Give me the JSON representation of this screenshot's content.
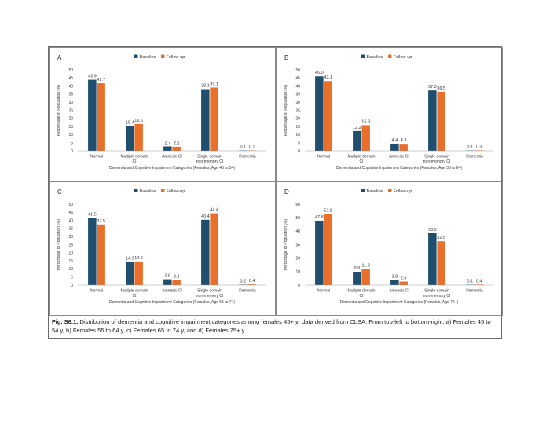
{
  "colors": {
    "baseline": "#1f4e6e",
    "followup": "#e8702a",
    "axis": "#999999"
  },
  "legend": {
    "baseline": "Baseline",
    "followup": "Follow-up"
  },
  "caption": {
    "label": "Fig. S6.1.",
    "text": " Distribution of dementia and cognitive impairment categories among females 45+ y; data derived from CLSA. From top-left to bottom-right: a) Females 45 to 54 y, b) Females 55 to 64 y, c) Females 65 to 74 y, and d) Females 75+ y."
  },
  "chart_data": [
    {
      "type": "bar",
      "panel": "A",
      "categories": [
        [
          "Normal"
        ],
        [
          "Multiple domain",
          "CI"
        ],
        [
          "Amnesic CI"
        ],
        [
          "Single domain",
          "non-memory CI"
        ],
        [
          "Dementia"
        ]
      ],
      "series": [
        {
          "name": "Baseline",
          "values": [
            43.9,
            15.4,
            2.7,
            38.1,
            0.1
          ],
          "labels": [
            "43.9",
            "15.4",
            "2.7",
            "38.1",
            "0.1"
          ]
        },
        {
          "name": "Follow-up",
          "values": [
            41.7,
            16.6,
            2.5,
            39.1,
            0.1
          ],
          "labels": [
            "41.7",
            "16.6",
            "2.5",
            "39.1",
            "0.1"
          ]
        }
      ],
      "ylabel": "Percentage of Population (%)",
      "xlabel": "Dementia and Cognitive Impairment Categories (Females, Age 45 to 54)",
      "ylim": [
        0,
        50
      ],
      "yticks": [
        0,
        5,
        10,
        15,
        20,
        25,
        30,
        35,
        40,
        45,
        50
      ],
      "grid": false,
      "legend_position": "top-center"
    },
    {
      "type": "bar",
      "panel": "B",
      "categories": [
        [
          "Normal"
        ],
        [
          "Multiple domain",
          "CI"
        ],
        [
          "Amnesic CI"
        ],
        [
          "Single domain",
          "non-memory CI"
        ],
        [
          "Dementia"
        ]
      ],
      "series": [
        {
          "name": "Baseline",
          "values": [
            46.0,
            12.2,
            4.4,
            37.3,
            0.1
          ],
          "labels": [
            "46.0",
            "12.2",
            "4.4",
            "37.3",
            "0.1"
          ]
        },
        {
          "name": "Follow-up",
          "values": [
            43.1,
            15.8,
            4.3,
            36.5,
            0.3
          ],
          "labels": [
            "43.1",
            "15.8",
            "4.3",
            "36.5",
            "0.3"
          ]
        }
      ],
      "ylabel": "Percentage of Population (%)",
      "xlabel": "Dementia and Cognitive Impairment Categories (Females, Age 55 to 64)",
      "ylim": [
        0,
        50
      ],
      "yticks": [
        0,
        5,
        10,
        15,
        20,
        25,
        30,
        35,
        40,
        45,
        50
      ],
      "grid": false,
      "legend_position": "top-center"
    },
    {
      "type": "bar",
      "panel": "C",
      "categories": [
        [
          "Normal"
        ],
        [
          "Multiple domain",
          "CI"
        ],
        [
          "Amnesic CI"
        ],
        [
          "Single domain",
          "non-memory CI"
        ],
        [
          "Dementia"
        ]
      ],
      "series": [
        {
          "name": "Baseline",
          "values": [
            41.5,
            14.3,
            3.6,
            40.4,
            0.2
          ],
          "labels": [
            "41.5",
            "14.3",
            "3.6",
            "40.4",
            "0.2"
          ]
        },
        {
          "name": "Follow-up",
          "values": [
            37.5,
            14.6,
            3.2,
            44.4,
            0.4
          ],
          "labels": [
            "37.5",
            "14.6",
            "3.2",
            "44.4",
            "0.4"
          ]
        }
      ],
      "ylabel": "Percentage of Population (%)",
      "xlabel": "Dementia and Cognitive Impairment Categories (Females, Age 65 to 74)",
      "ylim": [
        0,
        50
      ],
      "yticks": [
        0,
        5,
        10,
        15,
        20,
        25,
        30,
        35,
        40,
        45,
        50
      ],
      "grid": false,
      "legend_position": "top-center"
    },
    {
      "type": "bar",
      "panel": "D",
      "categories": [
        [
          "Normal"
        ],
        [
          "Multiple domain",
          "CI"
        ],
        [
          "Amnesic CI"
        ],
        [
          "Single domain",
          "non-memory CI"
        ],
        [
          "Dementia"
        ]
      ],
      "series": [
        {
          "name": "Baseline",
          "values": [
            47.8,
            9.9,
            3.8,
            38.5,
            0.1
          ],
          "labels": [
            "47.8",
            "9.9",
            "3.8",
            "38.5",
            "0.1"
          ]
        },
        {
          "name": "Follow-up",
          "values": [
            52.8,
            11.8,
            2.6,
            32.5,
            0.4
          ],
          "labels": [
            "52.8",
            "11.8",
            "2.6",
            "32.5",
            "0.4"
          ]
        }
      ],
      "ylabel": "Percentage of Population (%)",
      "xlabel": "Dementia and Cognitive Impairment Categories (Females, Age 75+)",
      "ylim": [
        0,
        60
      ],
      "yticks": [
        0,
        10,
        20,
        30,
        40,
        50,
        60
      ],
      "grid": false,
      "legend_position": "top-center"
    }
  ]
}
